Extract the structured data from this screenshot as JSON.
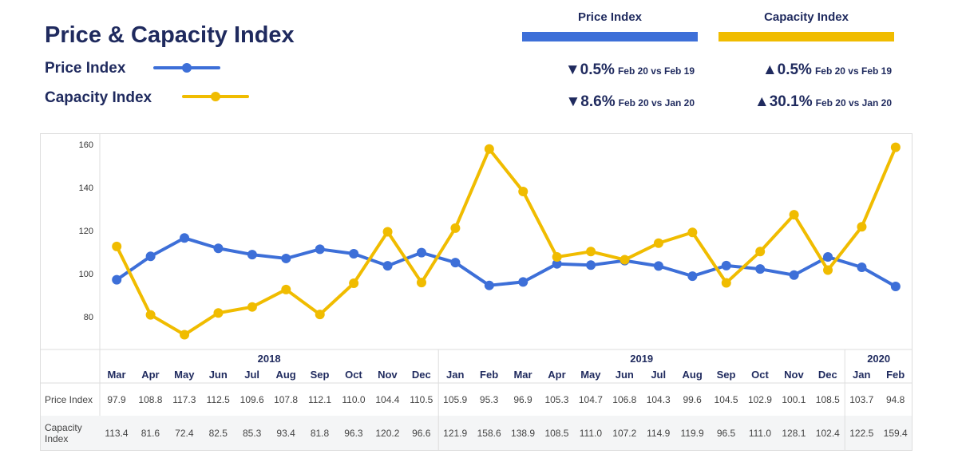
{
  "title": "Price & Capacity Index",
  "colors": {
    "price": "#3d6fd8",
    "capacity": "#f0bc00",
    "navy": "#1f2a5e"
  },
  "legend": [
    {
      "label": "Price Index"
    },
    {
      "label": "Capacity Index"
    }
  ],
  "summary": {
    "price": {
      "header": "Price Index",
      "rows": [
        {
          "arrow": "▼",
          "pct": "0.5%",
          "cmp": "Feb 20 vs Feb 19"
        },
        {
          "arrow": "▼",
          "pct": "8.6%",
          "cmp": "Feb 20 vs Jan 20"
        }
      ]
    },
    "capacity": {
      "header": "Capacity Index",
      "rows": [
        {
          "arrow": "▲",
          "pct": "0.5%",
          "cmp": "Feb 20 vs Feb 19"
        },
        {
          "arrow": "▲",
          "pct": "30.1%",
          "cmp": "Feb 20 vs Jan 20"
        }
      ]
    }
  },
  "chart_data": {
    "type": "line",
    "title": "Price & Capacity Index",
    "years": [
      {
        "label": "2018",
        "months": 10
      },
      {
        "label": "2019",
        "months": 12
      },
      {
        "label": "2020",
        "months": 2
      }
    ],
    "categories": [
      "Mar",
      "Apr",
      "May",
      "Jun",
      "Jul",
      "Aug",
      "Sep",
      "Oct",
      "Nov",
      "Dec",
      "Jan",
      "Feb",
      "Mar",
      "Apr",
      "May",
      "Jun",
      "Jul",
      "Aug",
      "Sep",
      "Oct",
      "Nov",
      "Dec",
      "Jan",
      "Feb"
    ],
    "yticks": [
      "160",
      "140",
      "120",
      "100",
      "80"
    ],
    "ylim": [
      70,
      164
    ],
    "series": [
      {
        "name": "Price Index",
        "table_label": "Price Index",
        "values": [
          97.9,
          108.8,
          117.3,
          112.5,
          109.6,
          107.8,
          112.1,
          110.0,
          104.4,
          110.5,
          105.9,
          95.3,
          96.9,
          105.3,
          104.7,
          106.8,
          104.3,
          99.6,
          104.5,
          102.9,
          100.1,
          108.5,
          103.7,
          94.8
        ]
      },
      {
        "name": "Capacity Index",
        "table_label": "Capacity Index",
        "values": [
          113.4,
          81.6,
          72.4,
          82.5,
          85.3,
          93.4,
          81.8,
          96.3,
          120.2,
          96.6,
          121.9,
          158.6,
          138.9,
          108.5,
          111.0,
          107.2,
          114.9,
          119.9,
          96.5,
          111.0,
          128.1,
          102.4,
          122.5,
          159.4
        ]
      }
    ]
  }
}
